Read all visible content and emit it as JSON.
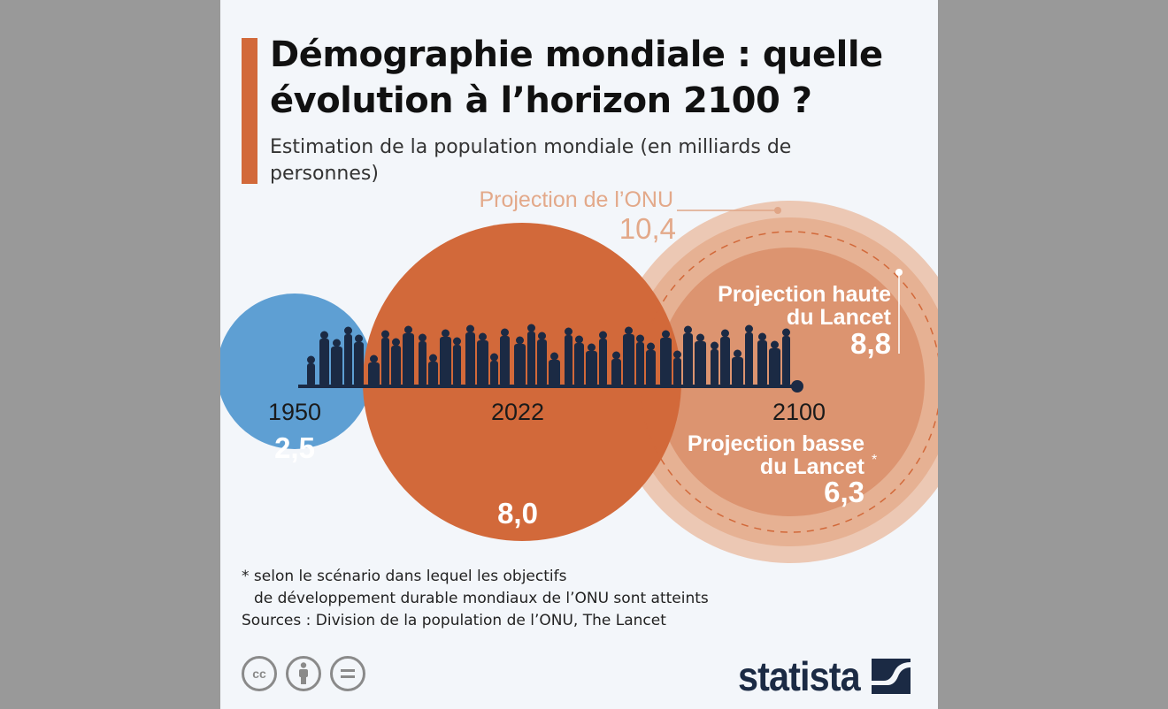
{
  "title": "Démographie mondiale : quelle évolution à l’horizon 2100 ?",
  "subtitle": "Estimation de la population mondiale (en milliards de personnes)",
  "chart_data": {
    "type": "bubble",
    "unit": "milliards de personnes",
    "points": [
      {
        "year": "1950",
        "value": 2.5,
        "value_label": "2,5",
        "color": "#5e9fd3"
      },
      {
        "year": "2022",
        "value": 8.0,
        "value_label": "8,0",
        "color": "#d2693a"
      }
    ],
    "projections_2100": {
      "year": "2100",
      "series": [
        {
          "name": "Projection de l’ONU",
          "value": 10.4,
          "value_label": "10,4",
          "color": "#ecc8b4"
        },
        {
          "name": "Projection haute du Lancet",
          "value": 8.8,
          "value_label": "8,8",
          "color": "#e6b193"
        },
        {
          "name": "Projection basse du Lancet",
          "value": 6.3,
          "value_label": "6,3",
          "color": "#dc9470",
          "footnote_mark": "*"
        }
      ]
    }
  },
  "labels": {
    "onu": "Projection de l’ONU",
    "haute_1": "Projection haute",
    "haute_2": "du Lancet",
    "basse_1": "Projection basse",
    "basse_2": "du Lancet",
    "asterisk": "*"
  },
  "footnote_1": "* selon le scénario dans lequel les objectifs",
  "footnote_2": "de développement durable mondiaux de l’ONU sont atteints",
  "sources": "Sources : Division de la population de l’ONU, The Lancet",
  "license_icons": [
    "cc-icon",
    "attribution-icon",
    "no-derivatives-icon"
  ],
  "logo": "statista",
  "colors": {
    "accent": "#d2693a",
    "silhouettes": "#1b2a44"
  }
}
